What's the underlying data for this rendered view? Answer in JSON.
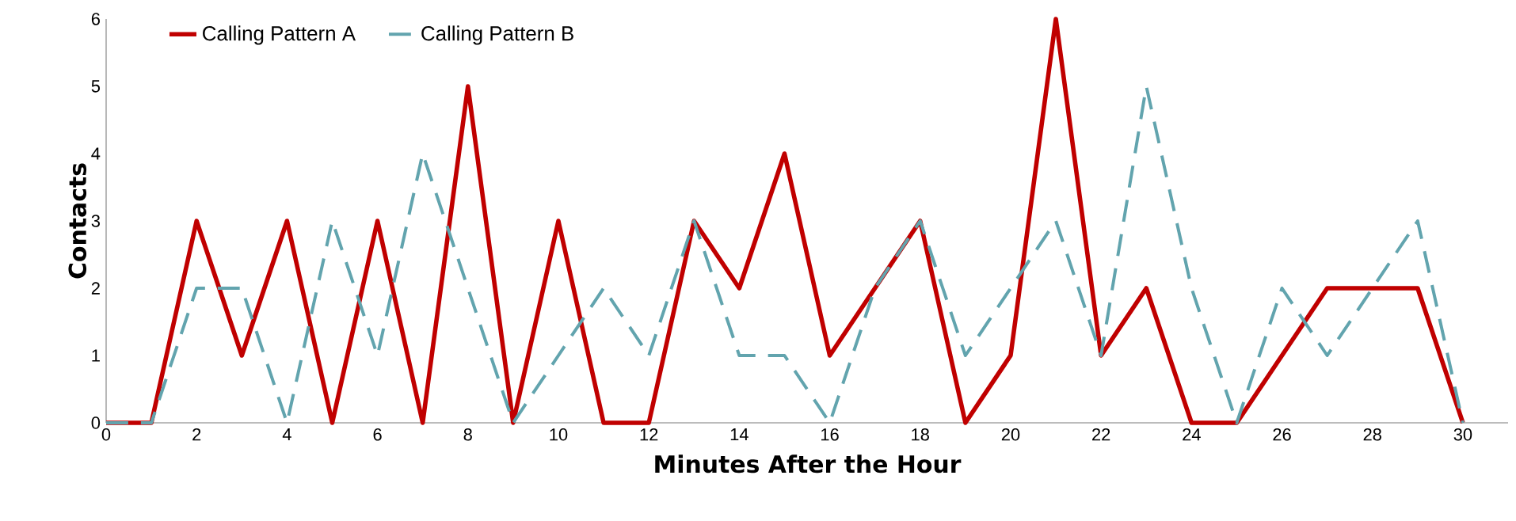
{
  "chart_data": {
    "type": "line",
    "xlabel": "Minutes After the Hour",
    "ylabel": "Contacts",
    "x": [
      0,
      1,
      2,
      3,
      4,
      5,
      6,
      7,
      8,
      9,
      10,
      11,
      12,
      13,
      14,
      15,
      16,
      17,
      18,
      19,
      20,
      21,
      22,
      23,
      24,
      25,
      26,
      27,
      28,
      29,
      30
    ],
    "series": [
      {
        "name": "Calling Pattern A",
        "color": "#c00000",
        "line_style": "solid",
        "values": [
          0,
          0,
          3,
          1,
          3,
          0,
          3,
          0,
          5,
          0,
          3,
          0,
          0,
          3,
          2,
          4,
          1,
          2,
          3,
          0,
          1,
          6,
          1,
          2,
          0,
          0,
          1,
          2,
          2,
          2,
          0
        ]
      },
      {
        "name": "Calling Pattern B",
        "color": "#62a4ae",
        "line_style": "dashed",
        "values": [
          0,
          0,
          2,
          2,
          0,
          3,
          1,
          4,
          2,
          0,
          1,
          2,
          1,
          3,
          1,
          1,
          0,
          2,
          3,
          1,
          2,
          3,
          1,
          5,
          2,
          0,
          2,
          1,
          2,
          3,
          0
        ]
      }
    ],
    "xlim": [
      0,
      31
    ],
    "xticks": [
      0,
      2,
      4,
      6,
      8,
      10,
      12,
      14,
      16,
      18,
      20,
      22,
      24,
      26,
      28,
      30
    ],
    "ylim": [
      0,
      6
    ],
    "yticks": [
      0,
      1,
      2,
      3,
      4,
      5,
      6
    ],
    "legend": "top left",
    "marker": "none"
  }
}
